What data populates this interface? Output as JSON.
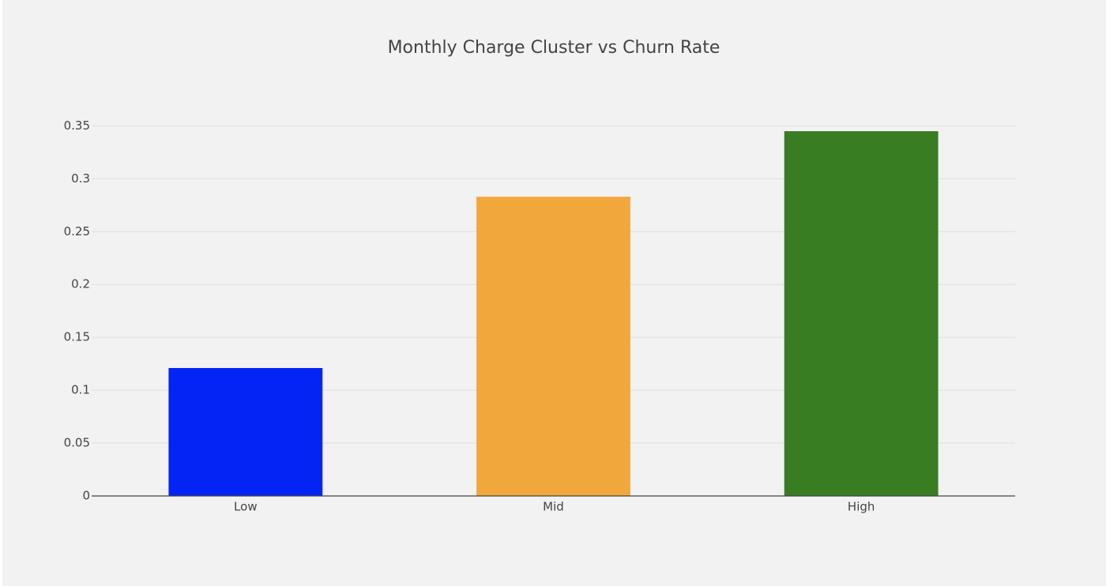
{
  "chart_data": {
    "type": "bar",
    "title": "Monthly Charge Cluster vs Churn Rate",
    "categories": [
      "Low",
      "Mid",
      "High"
    ],
    "values": [
      0.121,
      0.283,
      0.345
    ],
    "colors": [
      "#0324f5",
      "#f2a73d",
      "#387d21"
    ],
    "ylim": [
      0,
      0.363
    ],
    "yticks": [
      0,
      0.05,
      0.1,
      0.15,
      0.2,
      0.25,
      0.3,
      0.35
    ],
    "grid": true
  }
}
